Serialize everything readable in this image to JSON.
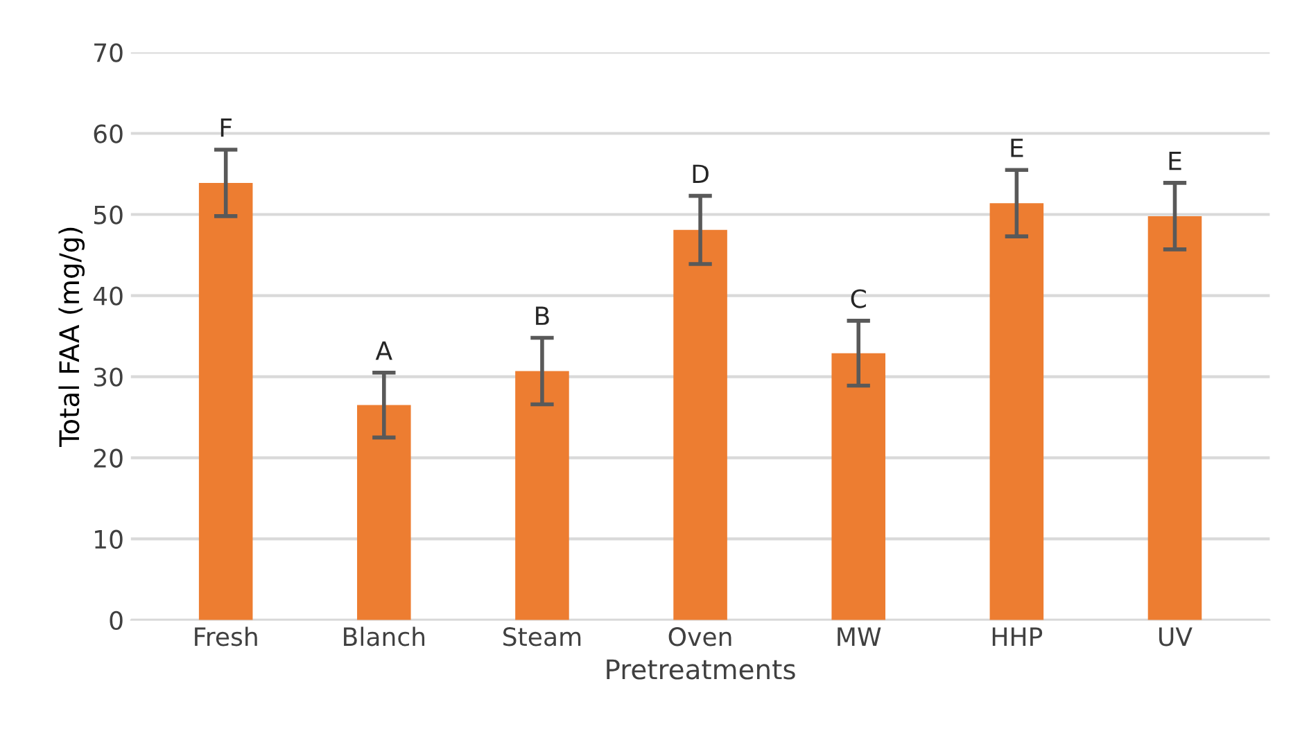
{
  "chart_data": {
    "type": "bar",
    "xlabel": "Pretreatments",
    "ylabel": "Total FAA (mg/g)",
    "categories": [
      "Fresh",
      "Blanch",
      "Steam",
      "Oven",
      "MW",
      "HHP",
      "UV"
    ],
    "values": [
      53.9,
      26.5,
      30.7,
      48.1,
      32.9,
      51.4,
      49.8
    ],
    "errors": [
      4.1,
      4,
      4.1,
      4.2,
      4,
      4.1,
      4.1
    ],
    "color": "#ed7d31",
    "ylim": [
      0,
      70
    ],
    "yticks": [
      0,
      10,
      20,
      30,
      40,
      50,
      60,
      70
    ],
    "grid": "y",
    "annotations": [
      {
        "text": "F",
        "x": "Fresh",
        "y": 58.0
      },
      {
        "text": "A",
        "x": "Blanch",
        "y": 30.5
      },
      {
        "text": "B",
        "x": "Steam",
        "y": 34.8
      },
      {
        "text": "D",
        "x": "Oven",
        "y": 52.3
      },
      {
        "text": "C",
        "x": "MW",
        "y": 36.9
      },
      {
        "text": "E",
        "x": "HHP",
        "y": 55.5
      },
      {
        "text": "E",
        "x": "UV",
        "y": 53.9
      }
    ]
  }
}
